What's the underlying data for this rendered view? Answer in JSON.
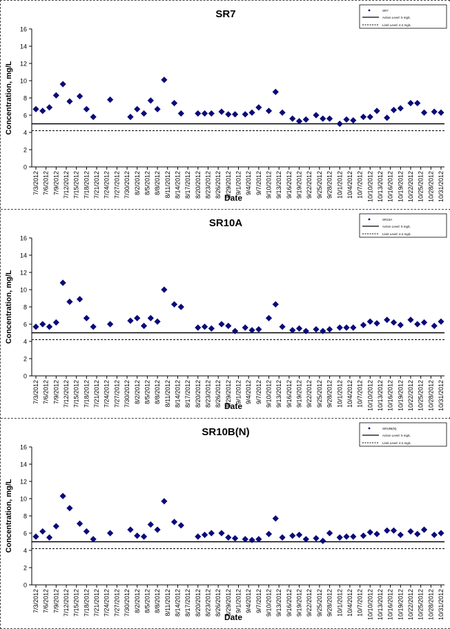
{
  "chart_data": [
    {
      "type": "scatter",
      "title": "SR7",
      "xlabel": "Date",
      "ylabel": "Concentration, mg/L",
      "ylim": [
        0,
        16
      ],
      "yticks": [
        "0",
        "2",
        "4",
        "6",
        "8",
        "10",
        "12",
        "14",
        "16"
      ],
      "grid": false,
      "legend_placement": "top-right",
      "x_tick_labels": [
        "7/3/2012",
        "7/6/2012",
        "7/9/2012",
        "7/12/2012",
        "7/15/2012",
        "7/18/2012",
        "7/21/2012",
        "7/24/2012",
        "7/27/2012",
        "7/30/2012",
        "8/2/2012",
        "8/5/2012",
        "8/8/2012",
        "8/11/2012",
        "8/14/2012",
        "8/17/2012",
        "8/20/2012",
        "8/23/2012",
        "8/26/2012",
        "8/29/2012",
        "9/1/2012",
        "9/4/2012",
        "9/7/2012",
        "9/10/2012",
        "9/13/2012",
        "9/16/2012",
        "9/19/2012",
        "9/22/2012",
        "9/25/2012",
        "9/28/2012",
        "10/1/2012",
        "10/4/2012",
        "10/7/2012",
        "10/10/2012",
        "10/13/2012",
        "10/16/2012",
        "10/19/2012",
        "10/22/2012",
        "10/25/2012",
        "10/28/2012",
        "10/31/2012"
      ],
      "legend": [
        "SR7",
        "Action Level: 5 mg/L",
        "Limit Level: 4.2 mg/L"
      ],
      "action_level": 5.0,
      "limit_level": 4.2,
      "series": [
        {
          "name": "SR7",
          "points": [
            [
              "7/3/2012",
              6.7
            ],
            [
              "7/5/2012",
              6.5
            ],
            [
              "7/7/2012",
              6.9
            ],
            [
              "7/9/2012",
              8.3
            ],
            [
              "7/11/2012",
              9.6
            ],
            [
              "7/13/2012",
              7.6
            ],
            [
              "7/16/2012",
              8.2
            ],
            [
              "7/18/2012",
              6.7
            ],
            [
              "7/20/2012",
              5.8
            ],
            [
              "7/25/2012",
              7.8
            ],
            [
              "7/31/2012",
              5.8
            ],
            [
              "8/2/2012",
              6.7
            ],
            [
              "8/4/2012",
              6.2
            ],
            [
              "8/6/2012",
              7.7
            ],
            [
              "8/8/2012",
              6.7
            ],
            [
              "8/10/2012",
              10.1
            ],
            [
              "8/13/2012",
              7.4
            ],
            [
              "8/15/2012",
              6.2
            ],
            [
              "8/20/2012",
              6.2
            ],
            [
              "8/22/2012",
              6.2
            ],
            [
              "8/24/2012",
              6.2
            ],
            [
              "8/27/2012",
              6.4
            ],
            [
              "8/29/2012",
              6.1
            ],
            [
              "8/31/2012",
              6.1
            ],
            [
              "9/3/2012",
              6.1
            ],
            [
              "9/5/2012",
              6.3
            ],
            [
              "9/7/2012",
              6.9
            ],
            [
              "9/10/2012",
              6.5
            ],
            [
              "9/12/2012",
              8.7
            ],
            [
              "9/14/2012",
              6.3
            ],
            [
              "9/17/2012",
              5.6
            ],
            [
              "9/19/2012",
              5.3
            ],
            [
              "9/21/2012",
              5.5
            ],
            [
              "9/24/2012",
              6.0
            ],
            [
              "9/26/2012",
              5.6
            ],
            [
              "9/28/2012",
              5.6
            ],
            [
              "10/1/2012",
              5.0
            ],
            [
              "10/3/2012",
              5.5
            ],
            [
              "10/5/2012",
              5.4
            ],
            [
              "10/8/2012",
              5.8
            ],
            [
              "10/10/2012",
              5.8
            ],
            [
              "10/12/2012",
              6.5
            ],
            [
              "10/15/2012",
              5.7
            ],
            [
              "10/17/2012",
              6.6
            ],
            [
              "10/19/2012",
              6.8
            ],
            [
              "10/22/2012",
              7.4
            ],
            [
              "10/24/2012",
              7.4
            ],
            [
              "10/26/2012",
              6.3
            ],
            [
              "10/29/2012",
              6.4
            ],
            [
              "10/31/2012",
              6.3
            ]
          ]
        }
      ]
    },
    {
      "type": "scatter",
      "title": "SR10A",
      "xlabel": "Date",
      "ylabel": "Concentration, mg/L",
      "ylim": [
        0,
        16
      ],
      "yticks": [
        "0",
        "2",
        "4",
        "6",
        "8",
        "10",
        "12",
        "14",
        "16"
      ],
      "grid": false,
      "legend_placement": "top-right",
      "x_tick_labels": [
        "7/3/2012",
        "7/6/2012",
        "7/9/2012",
        "7/12/2012",
        "7/15/2012",
        "7/18/2012",
        "7/21/2012",
        "7/24/2012",
        "7/27/2012",
        "7/30/2012",
        "8/2/2012",
        "8/5/2012",
        "8/8/2012",
        "8/11/2012",
        "8/14/2012",
        "8/17/2012",
        "8/20/2012",
        "8/23/2012",
        "8/26/2012",
        "8/29/2012",
        "9/1/2012",
        "9/4/2012",
        "9/7/2012",
        "9/10/2012",
        "9/13/2012",
        "9/16/2012",
        "9/19/2012",
        "9/22/2012",
        "9/25/2012",
        "9/28/2012",
        "10/1/2012",
        "10/4/2012",
        "10/7/2012",
        "10/10/2012",
        "10/13/2012",
        "10/16/2012",
        "10/19/2012",
        "10/22/2012",
        "10/25/2012",
        "10/28/2012",
        "10/31/2012"
      ],
      "legend": [
        "SR10A",
        "Action Level: 5 mg/L",
        "Limit Level: 4.2 mg/L"
      ],
      "action_level": 5.0,
      "limit_level": 4.2,
      "series": [
        {
          "name": "SR10A",
          "points": [
            [
              "7/3/2012",
              5.7
            ],
            [
              "7/5/2012",
              6.0
            ],
            [
              "7/7/2012",
              5.7
            ],
            [
              "7/9/2012",
              6.2
            ],
            [
              "7/11/2012",
              10.8
            ],
            [
              "7/13/2012",
              8.6
            ],
            [
              "7/16/2012",
              8.9
            ],
            [
              "7/18/2012",
              6.7
            ],
            [
              "7/20/2012",
              5.7
            ],
            [
              "7/25/2012",
              6.0
            ],
            [
              "7/31/2012",
              6.4
            ],
            [
              "8/2/2012",
              6.7
            ],
            [
              "8/4/2012",
              5.8
            ],
            [
              "8/6/2012",
              6.7
            ],
            [
              "8/8/2012",
              6.3
            ],
            [
              "8/10/2012",
              10.0
            ],
            [
              "8/13/2012",
              8.3
            ],
            [
              "8/15/2012",
              8.0
            ],
            [
              "8/20/2012",
              5.6
            ],
            [
              "8/22/2012",
              5.7
            ],
            [
              "8/24/2012",
              5.5
            ],
            [
              "8/27/2012",
              6.0
            ],
            [
              "8/29/2012",
              5.8
            ],
            [
              "8/31/2012",
              5.2
            ],
            [
              "9/3/2012",
              5.6
            ],
            [
              "9/5/2012",
              5.3
            ],
            [
              "9/7/2012",
              5.4
            ],
            [
              "9/10/2012",
              6.7
            ],
            [
              "9/12/2012",
              8.3
            ],
            [
              "9/14/2012",
              5.7
            ],
            [
              "9/17/2012",
              5.3
            ],
            [
              "9/19/2012",
              5.5
            ],
            [
              "9/21/2012",
              5.2
            ],
            [
              "9/24/2012",
              5.4
            ],
            [
              "9/26/2012",
              5.2
            ],
            [
              "9/28/2012",
              5.4
            ],
            [
              "10/1/2012",
              5.6
            ],
            [
              "10/3/2012",
              5.6
            ],
            [
              "10/5/2012",
              5.6
            ],
            [
              "10/8/2012",
              5.9
            ],
            [
              "10/10/2012",
              6.3
            ],
            [
              "10/12/2012",
              6.1
            ],
            [
              "10/15/2012",
              6.5
            ],
            [
              "10/17/2012",
              6.2
            ],
            [
              "10/19/2012",
              5.9
            ],
            [
              "10/22/2012",
              6.5
            ],
            [
              "10/24/2012",
              6.0
            ],
            [
              "10/26/2012",
              6.2
            ],
            [
              "10/29/2012",
              5.8
            ],
            [
              "10/31/2012",
              6.3
            ]
          ]
        }
      ]
    },
    {
      "type": "scatter",
      "title": "SR10B(N)",
      "xlabel": "Date",
      "ylabel": "Concentration, mg/L",
      "ylim": [
        0,
        16
      ],
      "yticks": [
        "0",
        "2",
        "4",
        "6",
        "8",
        "10",
        "12",
        "14",
        "16"
      ],
      "grid": false,
      "legend_placement": "top-right",
      "x_tick_labels": [
        "7/3/2012",
        "7/6/2012",
        "7/9/2012",
        "7/12/2012",
        "7/15/2012",
        "7/18/2012",
        "7/21/2012",
        "7/24/2012",
        "7/27/2012",
        "7/30/2012",
        "8/2/2012",
        "8/5/2012",
        "8/8/2012",
        "8/11/2012",
        "8/14/2012",
        "8/17/2012",
        "8/20/2012",
        "8/23/2012",
        "8/26/2012",
        "8/29/2012",
        "9/1/2012",
        "9/4/2012",
        "9/7/2012",
        "9/10/2012",
        "9/13/2012",
        "9/16/2012",
        "9/19/2012",
        "9/22/2012",
        "9/25/2012",
        "9/28/2012",
        "10/1/2012",
        "10/4/2012",
        "10/7/2012",
        "10/10/2012",
        "10/13/2012",
        "10/16/2012",
        "10/19/2012",
        "10/22/2012",
        "10/25/2012",
        "10/28/2012",
        "10/31/2012"
      ],
      "legend": [
        "SR10B(N)",
        "Action Level: 5 mg/L",
        "Limit Level: 4.2 mg/L"
      ],
      "action_level": 5.0,
      "limit_level": 4.2,
      "series": [
        {
          "name": "SR10B(N)",
          "points": [
            [
              "7/3/2012",
              5.6
            ],
            [
              "7/5/2012",
              6.2
            ],
            [
              "7/7/2012",
              5.5
            ],
            [
              "7/9/2012",
              6.8
            ],
            [
              "7/11/2012",
              10.3
            ],
            [
              "7/13/2012",
              8.9
            ],
            [
              "7/16/2012",
              7.1
            ],
            [
              "7/18/2012",
              6.2
            ],
            [
              "7/20/2012",
              5.3
            ],
            [
              "7/25/2012",
              6.0
            ],
            [
              "7/31/2012",
              6.4
            ],
            [
              "8/2/2012",
              5.7
            ],
            [
              "8/4/2012",
              5.6
            ],
            [
              "8/6/2012",
              7.0
            ],
            [
              "8/8/2012",
              6.4
            ],
            [
              "8/10/2012",
              9.7
            ],
            [
              "8/13/2012",
              7.3
            ],
            [
              "8/15/2012",
              6.9
            ],
            [
              "8/20/2012",
              5.6
            ],
            [
              "8/22/2012",
              5.8
            ],
            [
              "8/24/2012",
              6.0
            ],
            [
              "8/27/2012",
              6.0
            ],
            [
              "8/29/2012",
              5.5
            ],
            [
              "8/31/2012",
              5.4
            ],
            [
              "9/3/2012",
              5.3
            ],
            [
              "9/5/2012",
              5.2
            ],
            [
              "9/7/2012",
              5.3
            ],
            [
              "9/10/2012",
              5.9
            ],
            [
              "9/12/2012",
              7.7
            ],
            [
              "9/14/2012",
              5.5
            ],
            [
              "9/17/2012",
              5.7
            ],
            [
              "9/19/2012",
              5.8
            ],
            [
              "9/21/2012",
              5.3
            ],
            [
              "9/24/2012",
              5.4
            ],
            [
              "9/26/2012",
              5.1
            ],
            [
              "9/28/2012",
              6.0
            ],
            [
              "10/1/2012",
              5.5
            ],
            [
              "10/3/2012",
              5.6
            ],
            [
              "10/5/2012",
              5.6
            ],
            [
              "10/8/2012",
              5.7
            ],
            [
              "10/10/2012",
              6.1
            ],
            [
              "10/12/2012",
              5.9
            ],
            [
              "10/15/2012",
              6.3
            ],
            [
              "10/17/2012",
              6.3
            ],
            [
              "10/19/2012",
              5.8
            ],
            [
              "10/22/2012",
              6.2
            ],
            [
              "10/24/2012",
              5.9
            ],
            [
              "10/26/2012",
              6.4
            ],
            [
              "10/29/2012",
              5.8
            ],
            [
              "10/31/2012",
              6.0
            ]
          ]
        }
      ]
    }
  ]
}
